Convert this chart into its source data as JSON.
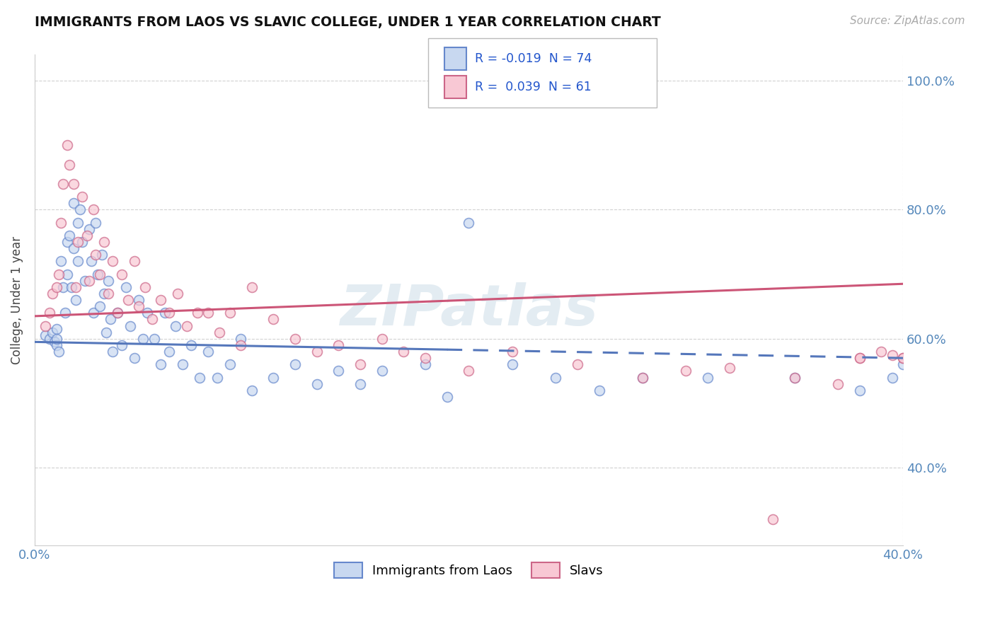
{
  "title": "IMMIGRANTS FROM LAOS VS SLAVIC COLLEGE, UNDER 1 YEAR CORRELATION CHART",
  "source": "Source: ZipAtlas.com",
  "ylabel": "College, Under 1 year",
  "xlim": [
    0.0,
    0.4
  ],
  "ylim": [
    0.28,
    1.04
  ],
  "yticks": [
    0.4,
    0.6,
    0.8,
    1.0
  ],
  "ytick_labels": [
    "40.0%",
    "60.0%",
    "80.0%",
    "100.0%"
  ],
  "xticks": [
    0.0,
    0.4
  ],
  "xtick_labels": [
    "0.0%",
    "40.0%"
  ],
  "series1_label": "Immigrants from Laos",
  "series2_label": "Slavs",
  "legend_line1": "R = -0.019  N = 74",
  "legend_line2": "R =  0.039  N = 61",
  "series1_face": "#c8d8f0",
  "series1_edge": "#6688cc",
  "series2_face": "#f8c8d4",
  "series2_edge": "#cc6688",
  "trendline1_color": "#5577bb",
  "trendline2_color": "#cc5577",
  "trendline1_y0": 0.595,
  "trendline1_y1": 0.57,
  "trendline2_y0": 0.635,
  "trendline2_y1": 0.685,
  "background_color": "#ffffff",
  "grid_color": "#cccccc",
  "axis_color": "#5588bb",
  "title_color": "#111111",
  "source_color": "#aaaaaa",
  "legend_text_color": "#2255cc",
  "watermark_color": "#ccdde8",
  "scatter_size": 100,
  "scatter_alpha": 0.7,
  "scatter_linewidth": 1.2,
  "blue_x": [
    0.005,
    0.007,
    0.008,
    0.009,
    0.01,
    0.01,
    0.01,
    0.011,
    0.012,
    0.013,
    0.014,
    0.015,
    0.015,
    0.016,
    0.017,
    0.018,
    0.018,
    0.019,
    0.02,
    0.02,
    0.021,
    0.022,
    0.023,
    0.025,
    0.026,
    0.027,
    0.028,
    0.029,
    0.03,
    0.031,
    0.032,
    0.033,
    0.034,
    0.035,
    0.036,
    0.038,
    0.04,
    0.042,
    0.044,
    0.046,
    0.048,
    0.05,
    0.052,
    0.055,
    0.058,
    0.06,
    0.062,
    0.065,
    0.068,
    0.072,
    0.076,
    0.08,
    0.084,
    0.09,
    0.095,
    0.1,
    0.11,
    0.12,
    0.13,
    0.14,
    0.15,
    0.16,
    0.18,
    0.19,
    0.2,
    0.22,
    0.24,
    0.26,
    0.28,
    0.31,
    0.35,
    0.38,
    0.395,
    0.4
  ],
  "blue_y": [
    0.605,
    0.6,
    0.61,
    0.595,
    0.59,
    0.615,
    0.6,
    0.58,
    0.72,
    0.68,
    0.64,
    0.75,
    0.7,
    0.76,
    0.68,
    0.81,
    0.74,
    0.66,
    0.78,
    0.72,
    0.8,
    0.75,
    0.69,
    0.77,
    0.72,
    0.64,
    0.78,
    0.7,
    0.65,
    0.73,
    0.67,
    0.61,
    0.69,
    0.63,
    0.58,
    0.64,
    0.59,
    0.68,
    0.62,
    0.57,
    0.66,
    0.6,
    0.64,
    0.6,
    0.56,
    0.64,
    0.58,
    0.62,
    0.56,
    0.59,
    0.54,
    0.58,
    0.54,
    0.56,
    0.6,
    0.52,
    0.54,
    0.56,
    0.53,
    0.55,
    0.53,
    0.55,
    0.56,
    0.51,
    0.78,
    0.56,
    0.54,
    0.52,
    0.54,
    0.54,
    0.54,
    0.52,
    0.54,
    0.56
  ],
  "pink_x": [
    0.005,
    0.007,
    0.008,
    0.01,
    0.011,
    0.012,
    0.013,
    0.015,
    0.016,
    0.018,
    0.019,
    0.02,
    0.022,
    0.024,
    0.025,
    0.027,
    0.028,
    0.03,
    0.032,
    0.034,
    0.036,
    0.038,
    0.04,
    0.043,
    0.046,
    0.048,
    0.051,
    0.054,
    0.058,
    0.062,
    0.066,
    0.07,
    0.075,
    0.08,
    0.085,
    0.09,
    0.095,
    0.1,
    0.11,
    0.12,
    0.13,
    0.14,
    0.15,
    0.16,
    0.17,
    0.18,
    0.2,
    0.22,
    0.25,
    0.28,
    0.3,
    0.32,
    0.35,
    0.37,
    0.38,
    0.39,
    0.395,
    0.4,
    0.34,
    0.38,
    0.4
  ],
  "pink_y": [
    0.62,
    0.64,
    0.67,
    0.68,
    0.7,
    0.78,
    0.84,
    0.9,
    0.87,
    0.84,
    0.68,
    0.75,
    0.82,
    0.76,
    0.69,
    0.8,
    0.73,
    0.7,
    0.75,
    0.67,
    0.72,
    0.64,
    0.7,
    0.66,
    0.72,
    0.65,
    0.68,
    0.63,
    0.66,
    0.64,
    0.67,
    0.62,
    0.64,
    0.64,
    0.61,
    0.64,
    0.59,
    0.68,
    0.63,
    0.6,
    0.58,
    0.59,
    0.56,
    0.6,
    0.58,
    0.57,
    0.55,
    0.58,
    0.56,
    0.54,
    0.55,
    0.555,
    0.54,
    0.53,
    0.57,
    0.58,
    0.575,
    0.57,
    0.32,
    0.57,
    0.57
  ]
}
